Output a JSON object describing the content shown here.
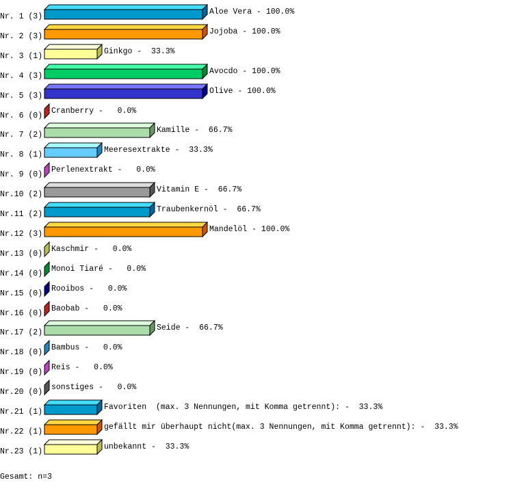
{
  "chart_data": {
    "type": "bar",
    "orientation": "horizontal",
    "style": "3d",
    "xlim": [
      0,
      100
    ],
    "palette": [
      {
        "front": "#0099cc",
        "top": "#44ddff",
        "side": "#006699"
      },
      {
        "front": "#ff9900",
        "top": "#ffd740",
        "side": "#cc5500"
      },
      {
        "front": "#ffff99",
        "top": "#ffffdd",
        "side": "#bbbb55"
      },
      {
        "front": "#00cc66",
        "top": "#44ffaa",
        "side": "#008833"
      },
      {
        "front": "#3333cc",
        "top": "#7777ff",
        "side": "#000088"
      },
      {
        "front": "#cc2222",
        "top": "#ff6666",
        "side": "#bb2222"
      },
      {
        "front": "#aaddaa",
        "top": "#ddffdd",
        "side": "#669966"
      },
      {
        "front": "#66ccff",
        "top": "#aaffff",
        "side": "#2288bb"
      },
      {
        "front": "#cc55cc",
        "top": "#ff99ff",
        "side": "#bb44bb"
      },
      {
        "front": "#999999",
        "top": "#dddddd",
        "side": "#555555"
      }
    ],
    "items": [
      {
        "row": "Nr. 1 (3)",
        "name": "Aloe Vera",
        "value": 100.0,
        "label": "Aloe Vera - 100.0%"
      },
      {
        "row": "Nr. 2 (3)",
        "name": "Jojoba",
        "value": 100.0,
        "label": "Jojoba - 100.0%"
      },
      {
        "row": "Nr. 3 (1)",
        "name": "Ginkgo",
        "value": 33.3,
        "label": "Ginkgo -  33.3%"
      },
      {
        "row": "Nr. 4 (3)",
        "name": "Avocdo",
        "value": 100.0,
        "label": "Avocdo - 100.0%"
      },
      {
        "row": "Nr. 5 (3)",
        "name": "Olive",
        "value": 100.0,
        "label": "Olive - 100.0%"
      },
      {
        "row": "Nr. 6 (0)",
        "name": "Cranberry",
        "value": 0.0,
        "label": "Cranberry -   0.0%"
      },
      {
        "row": "Nr. 7 (2)",
        "name": "Kamille",
        "value": 66.7,
        "label": "Kamille -  66.7%"
      },
      {
        "row": "Nr. 8 (1)",
        "name": "Meeresextrakte",
        "value": 33.3,
        "label": "Meeresextrakte -  33.3%"
      },
      {
        "row": "Nr. 9 (0)",
        "name": "Perlenextrakt",
        "value": 0.0,
        "label": "Perlenextrakt -   0.0%"
      },
      {
        "row": "Nr.10 (2)",
        "name": "Vitamin E",
        "value": 66.7,
        "label": "Vitamin E -  66.7%"
      },
      {
        "row": "Nr.11 (2)",
        "name": "Traubenkernöl",
        "value": 66.7,
        "label": "Traubenkernöl -  66.7%"
      },
      {
        "row": "Nr.12 (3)",
        "name": "Mandelöl",
        "value": 100.0,
        "label": "Mandelöl - 100.0%"
      },
      {
        "row": "Nr.13 (0)",
        "name": "Kaschmir",
        "value": 0.0,
        "label": "Kaschmir -   0.0%"
      },
      {
        "row": "Nr.14 (0)",
        "name": "Monoi Tiaré",
        "value": 0.0,
        "label": "Monoi Tiaré -   0.0%"
      },
      {
        "row": "Nr.15 (0)",
        "name": "Rooibos",
        "value": 0.0,
        "label": "Rooibos -   0.0%"
      },
      {
        "row": "Nr.16 (0)",
        "name": "Baobab",
        "value": 0.0,
        "label": "Baobab -   0.0%"
      },
      {
        "row": "Nr.17 (2)",
        "name": "Seide",
        "value": 66.7,
        "label": "Seide -  66.7%"
      },
      {
        "row": "Nr.18 (0)",
        "name": "Bambus",
        "value": 0.0,
        "label": "Bambus -   0.0%"
      },
      {
        "row": "Nr.19 (0)",
        "name": "Reis",
        "value": 0.0,
        "label": "Reis -   0.0%"
      },
      {
        "row": "Nr.20 (0)",
        "name": "sonstiges",
        "value": 0.0,
        "label": "sonstiges -   0.0%"
      },
      {
        "row": "Nr.21 (1)",
        "name": "Favoriten  (max. 3 Nennungen, mit Komma getrennt):",
        "value": 33.3,
        "label": "Favoriten  (max. 3 Nennungen, mit Komma getrennt): -  33.3%"
      },
      {
        "row": "Nr.22 (1)",
        "name": "gefällt mir überhaupt nicht(max. 3 Nennungen, mit Komma getrennt):",
        "value": 33.3,
        "label": "gefällt mir überhaupt nicht(max. 3 Nennungen, mit Komma getrennt): -  33.3%"
      },
      {
        "row": "Nr.23 (1)",
        "name": "unbekannt",
        "value": 33.3,
        "label": "unbekannt -  33.3%"
      }
    ],
    "total": "Gesamt: n=3"
  }
}
